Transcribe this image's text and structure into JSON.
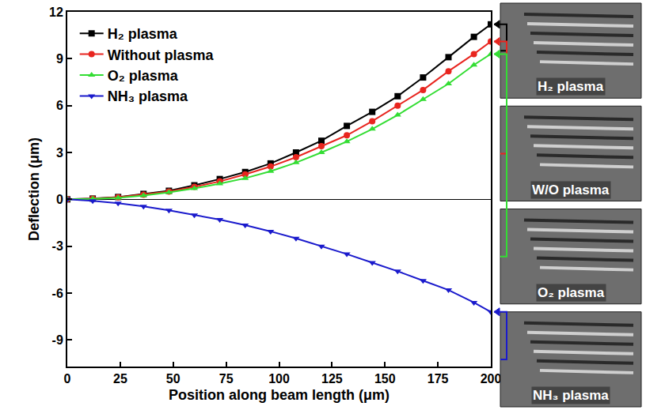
{
  "chart_data": {
    "type": "line",
    "x_label": "Position along beam length (μm)",
    "y_label": "Deflection (μm)",
    "x": [
      0,
      12,
      24,
      36,
      48,
      60,
      72,
      84,
      96,
      108,
      120,
      132,
      144,
      156,
      168,
      180,
      192,
      200
    ],
    "series": [
      {
        "name": "H₂ plasma",
        "color": "#000000",
        "marker": "square",
        "values": [
          0,
          0.05,
          0.15,
          0.35,
          0.55,
          0.9,
          1.3,
          1.75,
          2.3,
          3.0,
          3.75,
          4.7,
          5.6,
          6.6,
          7.8,
          9.1,
          10.4,
          11.2
        ]
      },
      {
        "name": "Without plasma",
        "color": "#e8251f",
        "marker": "circle",
        "values": [
          0,
          0.04,
          0.13,
          0.3,
          0.5,
          0.8,
          1.15,
          1.6,
          2.1,
          2.7,
          3.4,
          4.1,
          5.0,
          6.0,
          7.0,
          8.2,
          9.3,
          10.1
        ]
      },
      {
        "name": "O₂ plasma",
        "color": "#33dd33",
        "marker": "triangle-up",
        "values": [
          0,
          0.03,
          0.1,
          0.25,
          0.45,
          0.7,
          1.0,
          1.35,
          1.8,
          2.35,
          3.0,
          3.7,
          4.5,
          5.4,
          6.4,
          7.4,
          8.6,
          9.3
        ]
      },
      {
        "name": "NH₃ plasma",
        "color": "#1a1acc",
        "marker": "triangle-down",
        "values": [
          0,
          -0.1,
          -0.25,
          -0.45,
          -0.7,
          -1.0,
          -1.3,
          -1.65,
          -2.05,
          -2.5,
          -3.0,
          -3.5,
          -4.05,
          -4.6,
          -5.2,
          -5.8,
          -6.6,
          -7.2
        ]
      }
    ],
    "xlim": [
      0,
      200
    ],
    "ylim": [
      -10.7,
      12
    ],
    "xticks": [
      0,
      25,
      50,
      75,
      100,
      125,
      150,
      175,
      200
    ],
    "yticks": [
      -9,
      -6,
      -3,
      0,
      3,
      6,
      9,
      12
    ],
    "legend": "upper left",
    "annotations": [
      "H₂ plasma",
      "W/O plasma",
      "O₂ plasma",
      "NH₃ plasma"
    ]
  }
}
